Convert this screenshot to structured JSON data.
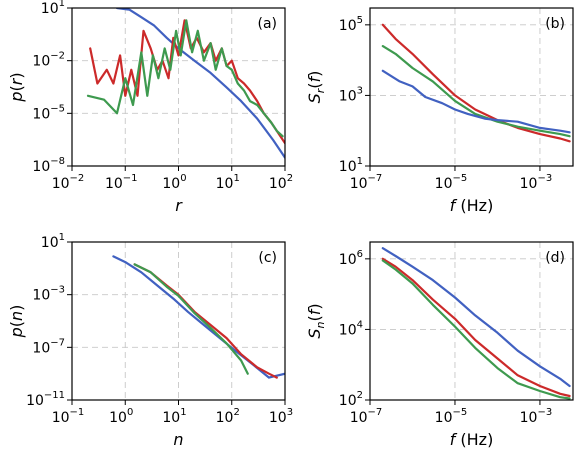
{
  "colors": {
    "blue": "#4161c1",
    "red": "#cc2a2a",
    "green": "#3e9a4f"
  },
  "chart_data": [
    {
      "id": "a",
      "type": "line",
      "tag": "(a)",
      "xlabel": "r",
      "ylabel": "p(r)",
      "xscale": "log",
      "yscale": "log",
      "xlim": [
        0.01,
        100
      ],
      "ylim": [
        1e-08,
        10
      ],
      "xticks": [
        {
          "v": 0.01,
          "t": "10",
          "e": "−2"
        },
        {
          "v": 0.1,
          "t": "10",
          "e": "−1"
        },
        {
          "v": 1,
          "t": "10",
          "e": "0"
        },
        {
          "v": 10,
          "t": "10",
          "e": "1"
        },
        {
          "v": 100,
          "t": "10",
          "e": "2"
        }
      ],
      "yticks": [
        {
          "v": 1e-08,
          "t": "10",
          "e": "−8"
        },
        {
          "v": 1e-05,
          "t": "10",
          "e": "−5"
        },
        {
          "v": 0.01,
          "t": "10",
          "e": "−2"
        },
        {
          "v": 10,
          "t": "10",
          "e": "1"
        }
      ],
      "grid": true,
      "series": [
        {
          "color": "blue",
          "x": [
            0.07,
            0.12,
            0.2,
            0.35,
            0.6,
            1,
            2,
            4,
            8,
            15,
            30,
            60,
            100
          ],
          "y": [
            10,
            8,
            3,
            1,
            0.2,
            0.05,
            0.01,
            0.002,
            0.0003,
            5e-05,
            5e-06,
            3e-07,
            3e-08
          ]
        },
        {
          "color": "red",
          "x": [
            0.022,
            0.03,
            0.045,
            0.06,
            0.08,
            0.1,
            0.13,
            0.17,
            0.22,
            0.3,
            0.4,
            0.5,
            0.65,
            0.8,
            1,
            1.3,
            1.7,
            2.2,
            3,
            4,
            5,
            6.5,
            8,
            10,
            13,
            17,
            22,
            30,
            40,
            55,
            70,
            100
          ],
          "y": [
            0.05,
            0.0005,
            0.003,
            0.0005,
            0.02,
            0.0001,
            0.003,
            0.0001,
            0.5,
            0.05,
            0.003,
            0.01,
            0.001,
            0.2,
            0.02,
            2,
            0.05,
            0.2,
            0.03,
            0.1,
            0.01,
            0.05,
            0.005,
            0.01,
            0.001,
            0.0005,
            0.0002,
            5e-05,
            1e-05,
            3e-06,
            1e-06,
            2e-07
          ]
        },
        {
          "color": "green",
          "x": [
            0.02,
            0.04,
            0.07,
            0.1,
            0.14,
            0.2,
            0.26,
            0.33,
            0.42,
            0.55,
            0.7,
            0.9,
            1.1,
            1.4,
            1.8,
            2.3,
            3,
            4,
            5,
            6.5,
            8,
            10,
            13,
            17,
            22,
            30,
            40,
            55,
            70,
            90
          ],
          "y": [
            0.0001,
            6e-05,
            1e-05,
            0.001,
            3e-05,
            0.03,
            0.0001,
            0.02,
            0.001,
            0.05,
            0.003,
            0.5,
            0.02,
            2,
            0.03,
            0.5,
            0.01,
            0.1,
            0.003,
            0.05,
            0.005,
            0.003,
            0.0005,
            0.0002,
            5e-05,
            3e-05,
            1e-05,
            3e-06,
            1e-06,
            5e-07
          ]
        }
      ]
    },
    {
      "id": "b",
      "type": "line",
      "tag": "(b)",
      "xlabel": "f (Hz)",
      "ylabel": "S_r(f)",
      "xscale": "log",
      "yscale": "log",
      "xlim": [
        1e-07,
        0.006
      ],
      "ylim": [
        10,
        300000
      ],
      "xticks": [
        {
          "v": 1e-07,
          "t": "10",
          "e": "−7"
        },
        {
          "v": 1e-05,
          "t": "10",
          "e": "−5"
        },
        {
          "v": 0.001,
          "t": "10",
          "e": "−3"
        }
      ],
      "yticks": [
        {
          "v": 10,
          "t": "10",
          "e": "1"
        },
        {
          "v": 1000,
          "t": "10",
          "e": "3"
        },
        {
          "v": 100000,
          "t": "10",
          "e": "5"
        }
      ],
      "grid": true,
      "series": [
        {
          "color": "red",
          "x": [
            2e-07,
            4e-07,
            1e-06,
            3e-06,
            1e-05,
            3e-05,
            0.0001,
            0.0003,
            0.001,
            0.003,
            0.005
          ],
          "y": [
            100000,
            40000,
            15000,
            4000,
            1000,
            400,
            200,
            120,
            80,
            60,
            50
          ]
        },
        {
          "color": "green",
          "x": [
            2e-07,
            4e-07,
            1e-06,
            3e-06,
            1e-05,
            3e-05,
            0.0001,
            0.0003,
            0.001,
            0.003,
            0.005
          ],
          "y": [
            25000,
            15000,
            6000,
            2500,
            700,
            300,
            180,
            130,
            100,
            80,
            70
          ]
        },
        {
          "color": "blue",
          "x": [
            2e-07,
            5e-07,
            1e-06,
            2e-06,
            5e-06,
            1e-05,
            2e-05,
            5e-05,
            0.0001,
            0.0003,
            0.001,
            0.003,
            0.005
          ],
          "y": [
            5000,
            2500,
            1800,
            900,
            600,
            400,
            300,
            220,
            200,
            180,
            120,
            100,
            90
          ]
        }
      ]
    },
    {
      "id": "c",
      "type": "line",
      "tag": "(c)",
      "xlabel": "n",
      "ylabel": "p(n)",
      "xscale": "log",
      "yscale": "log",
      "xlim": [
        0.1,
        1000
      ],
      "ylim": [
        1e-11,
        10
      ],
      "xticks": [
        {
          "v": 0.1,
          "t": "10",
          "e": "−1"
        },
        {
          "v": 1,
          "t": "10",
          "e": "0"
        },
        {
          "v": 10,
          "t": "10",
          "e": "1"
        },
        {
          "v": 100,
          "t": "10",
          "e": "2"
        },
        {
          "v": 1000,
          "t": "10",
          "e": "3"
        }
      ],
      "yticks": [
        {
          "v": 1e-11,
          "t": "10",
          "e": "−11"
        },
        {
          "v": 1e-07,
          "t": "10",
          "e": "−7"
        },
        {
          "v": 0.001,
          "t": "10",
          "e": "−3"
        },
        {
          "v": 10,
          "t": "10",
          "e": "1"
        }
      ],
      "grid": true,
      "series": [
        {
          "color": "blue",
          "x": [
            0.6,
            1,
            2,
            4,
            8,
            15,
            30,
            60,
            120,
            250,
            500,
            1000
          ],
          "y": [
            0.8,
            0.3,
            0.05,
            0.005,
            0.0005,
            5e-05,
            5e-06,
            5e-07,
            5e-08,
            5e-09,
            5e-10,
            1e-09
          ]
        },
        {
          "color": "red",
          "x": [
            1.5,
            3,
            6,
            10,
            20,
            40,
            80,
            150,
            300,
            500,
            700
          ],
          "y": [
            0.2,
            0.05,
            0.005,
            0.001,
            5e-05,
            5e-06,
            5e-07,
            3e-08,
            3e-09,
            1e-09,
            5e-10
          ]
        },
        {
          "color": "green",
          "x": [
            1.5,
            3,
            6,
            10,
            20,
            40,
            80,
            150,
            200
          ],
          "y": [
            0.2,
            0.05,
            0.004,
            0.0008,
            4e-05,
            3e-06,
            2e-07,
            1e-08,
            1e-09
          ]
        }
      ]
    },
    {
      "id": "d",
      "type": "line",
      "tag": "(d)",
      "xlabel": "f (Hz)",
      "ylabel": "S_n(f)",
      "xscale": "log",
      "yscale": "log",
      "xlim": [
        1e-07,
        0.006
      ],
      "ylim": [
        100,
        3000000
      ],
      "xticks": [
        {
          "v": 1e-07,
          "t": "10",
          "e": "−7"
        },
        {
          "v": 1e-05,
          "t": "10",
          "e": "−5"
        },
        {
          "v": 0.001,
          "t": "10",
          "e": "−3"
        }
      ],
      "yticks": [
        {
          "v": 100,
          "t": "10",
          "e": "2"
        },
        {
          "v": 10000,
          "t": "10",
          "e": "4"
        },
        {
          "v": 1000000,
          "t": "10",
          "e": "6"
        }
      ],
      "grid": true,
      "series": [
        {
          "color": "blue",
          "x": [
            2e-07,
            4e-07,
            1e-06,
            3e-06,
            1e-05,
            3e-05,
            0.0001,
            0.0003,
            0.001,
            0.003,
            0.005
          ],
          "y": [
            2000000,
            1200000,
            600000,
            250000,
            80000,
            25000,
            8000,
            2500,
            900,
            400,
            250
          ]
        },
        {
          "color": "red",
          "x": [
            2e-07,
            4e-07,
            1e-06,
            3e-06,
            1e-05,
            3e-05,
            0.0001,
            0.0003,
            0.001,
            0.003,
            0.005
          ],
          "y": [
            1000000,
            600000,
            250000,
            70000,
            20000,
            5000,
            1500,
            500,
            250,
            150,
            130
          ]
        },
        {
          "color": "green",
          "x": [
            2e-07,
            4e-07,
            1e-06,
            3e-06,
            1e-05,
            3e-05,
            0.0001,
            0.0003,
            0.001,
            0.003,
            0.005
          ],
          "y": [
            900000,
            500000,
            200000,
            50000,
            12000,
            3000,
            800,
            300,
            180,
            120,
            110
          ]
        }
      ]
    }
  ]
}
